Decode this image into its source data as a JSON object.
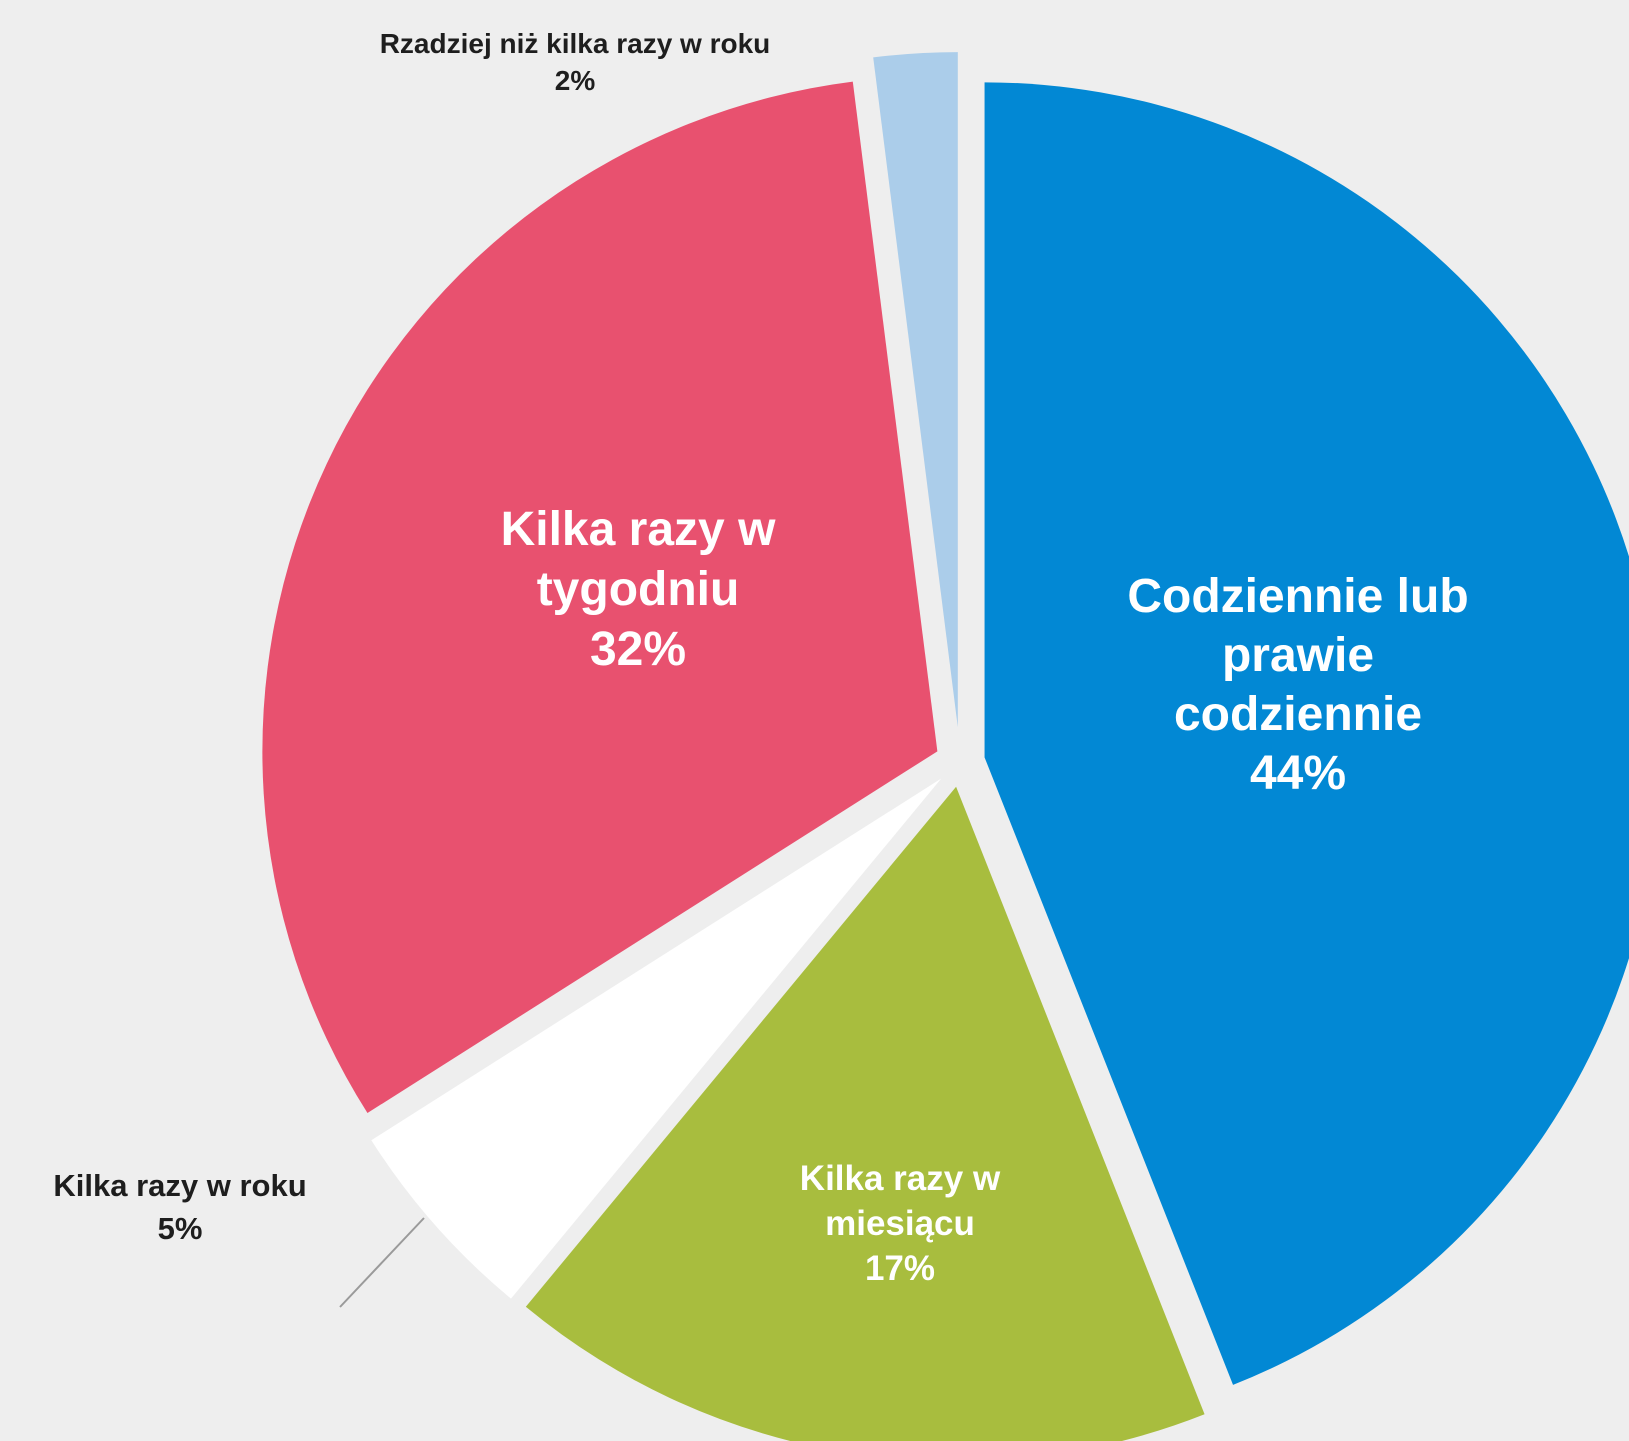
{
  "chart_data": {
    "type": "pie",
    "unit": "%",
    "slices": [
      {
        "label": "Codziennie lub prawie codziennie",
        "value": 44,
        "value_label": "44%",
        "color": "#0288d4",
        "label_lines": [
          "Codziennie lub",
          "prawie",
          "codziennie"
        ]
      },
      {
        "label": "Kilka razy w miesiącu",
        "value": 17,
        "value_label": "17%",
        "color": "#a8bd3e",
        "label_lines": [
          "Kilka razy w",
          "miesiącu"
        ]
      },
      {
        "label": "Kilka razy w roku",
        "value": 5,
        "value_label": "5%",
        "color": "#ffffff",
        "label_lines": [
          "Kilka razy w roku"
        ]
      },
      {
        "label": "Kilka razy w tygodniu",
        "value": 32,
        "value_label": "32%",
        "color": "#e8516f",
        "label_lines": [
          "Kilka razy w",
          "tygodniu"
        ]
      },
      {
        "label": "Rzadziej niż kilka razy w roku",
        "value": 2,
        "value_label": "2%",
        "color": "#abcdea",
        "label_lines": [
          "Rzadziej niż kilka razy w roku"
        ]
      }
    ]
  }
}
